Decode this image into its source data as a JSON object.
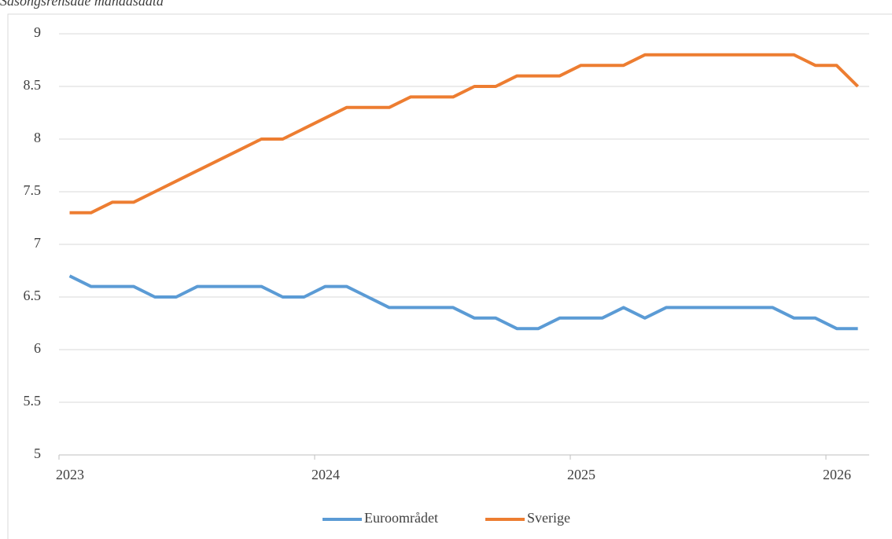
{
  "chart_data": {
    "type": "line",
    "subtitle": "Säsongsrensade månadsdata",
    "categories": [
      "2023",
      null,
      null,
      null,
      null,
      null,
      null,
      null,
      null,
      null,
      null,
      null,
      "2024",
      null,
      null,
      null,
      null,
      null,
      null,
      null,
      null,
      null,
      null,
      null,
      "2025",
      null,
      null,
      null,
      null,
      null,
      null,
      null,
      null,
      null,
      null,
      null,
      "2026",
      null
    ],
    "series": [
      {
        "name": "Euroområdet",
        "color": "#5b9bd5",
        "values": [
          6.7,
          6.6,
          6.6,
          6.6,
          6.5,
          6.5,
          6.6,
          6.6,
          6.6,
          6.6,
          6.5,
          6.5,
          6.6,
          6.6,
          6.5,
          6.4,
          6.4,
          6.4,
          6.4,
          6.3,
          6.3,
          6.2,
          6.2,
          6.3,
          6.3,
          6.3,
          6.4,
          6.3,
          6.4,
          6.4,
          6.4,
          6.4,
          6.4,
          6.4,
          6.3,
          6.3,
          6.2,
          6.2
        ]
      },
      {
        "name": "Sverige",
        "color": "#ed7d31",
        "values": [
          7.3,
          7.3,
          7.4,
          7.4,
          7.5,
          7.6,
          7.7,
          7.8,
          7.9,
          8.0,
          8.0,
          8.1,
          8.2,
          8.3,
          8.3,
          8.3,
          8.4,
          8.4,
          8.4,
          8.5,
          8.5,
          8.6,
          8.6,
          8.6,
          8.7,
          8.7,
          8.7,
          8.8,
          8.8,
          8.8,
          8.8,
          8.8,
          8.8,
          8.8,
          8.8,
          8.7,
          8.7,
          8.5
        ]
      }
    ],
    "ylim": [
      5,
      9
    ],
    "yticks": [
      5,
      5.5,
      6,
      6.5,
      7,
      7.5,
      8,
      8.5,
      9
    ],
    "grid": true,
    "legend": "bottom"
  }
}
